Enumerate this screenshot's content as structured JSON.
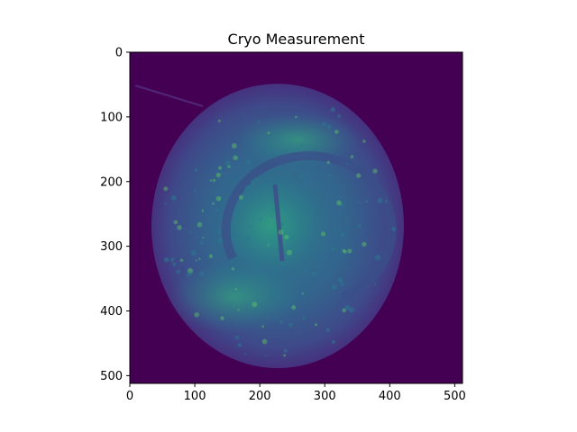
{
  "figure": {
    "title": "Cryo Measurement",
    "colormap": "viridis",
    "background_color": "#440154",
    "x_axis": {
      "ticks": [
        {
          "value": 0,
          "label": "0"
        },
        {
          "value": 100,
          "label": "100"
        },
        {
          "value": 200,
          "label": "200"
        },
        {
          "value": 300,
          "label": "300"
        },
        {
          "value": 400,
          "label": "400"
        },
        {
          "value": 500,
          "label": "500"
        }
      ],
      "range": [
        0,
        512
      ]
    },
    "y_axis": {
      "ticks": [
        {
          "value": 0,
          "label": "0"
        },
        {
          "value": 100,
          "label": "100"
        },
        {
          "value": 200,
          "label": "200"
        },
        {
          "value": 300,
          "label": "300"
        },
        {
          "value": 400,
          "label": "400"
        },
        {
          "value": 500,
          "label": "500"
        }
      ],
      "range": [
        0,
        512
      ],
      "inverted": true
    }
  }
}
